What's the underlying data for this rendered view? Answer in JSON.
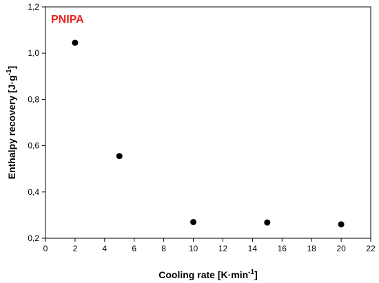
{
  "chart_data": {
    "type": "scatter",
    "annotation": "PNIPA",
    "annotation_color": "#e8201a",
    "xlabel_main": "Cooling rate [K·min",
    "xlabel_sup": "-1",
    "xlabel_end": "]",
    "ylabel_main": "Enthalpy recovery [J·g",
    "ylabel_sup": "-1",
    "ylabel_end": "]",
    "xlim": [
      0,
      22
    ],
    "ylim": [
      0.2,
      1.2
    ],
    "x_ticks": [
      0,
      2,
      4,
      6,
      8,
      10,
      12,
      14,
      16,
      18,
      20,
      22
    ],
    "x_tick_labels": [
      "0",
      "2",
      "4",
      "6",
      "8",
      "10",
      "12",
      "14",
      "16",
      "18",
      "20",
      "22"
    ],
    "y_ticks": [
      0.2,
      0.4,
      0.6,
      0.8,
      1.0,
      1.2
    ],
    "y_tick_labels": [
      "0,2",
      "0,4",
      "0,6",
      "0,8",
      "1,0",
      "1,2"
    ],
    "grid": false,
    "marker_color": "#000000",
    "series": [
      {
        "x": [
          2,
          5,
          10,
          15,
          20
        ],
        "y": [
          1.045,
          0.555,
          0.27,
          0.268,
          0.26
        ]
      }
    ]
  }
}
